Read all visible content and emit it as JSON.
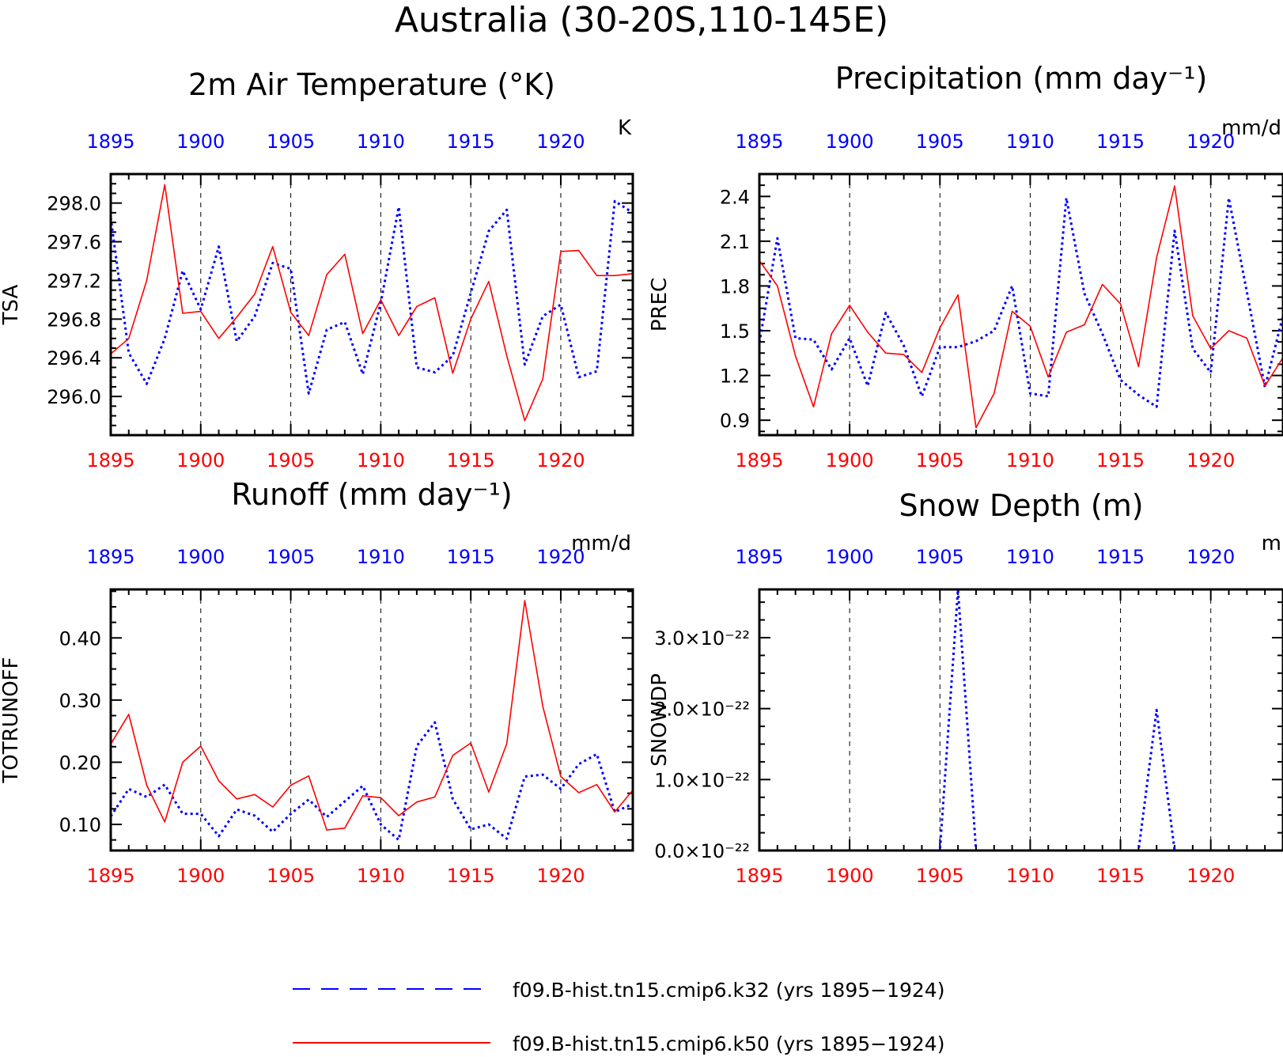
{
  "main_title": "Australia (30-20S,110-145E)",
  "colors": {
    "k32": "#0000ff",
    "k50": "#ff0000",
    "axis": "#000000"
  },
  "years": [
    1895,
    1896,
    1897,
    1898,
    1899,
    1900,
    1901,
    1902,
    1903,
    1904,
    1905,
    1906,
    1907,
    1908,
    1909,
    1910,
    1911,
    1912,
    1913,
    1914,
    1915,
    1916,
    1917,
    1918,
    1919,
    1920,
    1921,
    1922,
    1923,
    1924
  ],
  "chart_data": [
    {
      "id": "tsa",
      "type": "line",
      "title": "2m Air Temperature (°K)",
      "ylabel": "TSA",
      "units": "K",
      "ylim": [
        295.6,
        298.3
      ],
      "yticks": [
        "296.0",
        "296.4",
        "296.8",
        "297.2",
        "297.6",
        "298.0"
      ],
      "ytick_values": [
        296.0,
        296.4,
        296.8,
        297.2,
        297.6,
        298.0
      ],
      "xticks": [
        "1895",
        "1900",
        "1905",
        "1910",
        "1915",
        "1920"
      ],
      "xlim": [
        1895,
        1924
      ],
      "grid": "vertical dashed at 1900,1905,1910,1915,1920",
      "series": [
        {
          "name": "f09.B-hist.tn15.cmip6.k32 (yrs 1895-1924)",
          "style": "dotted",
          "color": "blue",
          "values": [
            297.85,
            296.45,
            296.13,
            296.6,
            297.3,
            296.9,
            297.55,
            296.57,
            296.83,
            297.38,
            297.32,
            296.03,
            296.69,
            296.77,
            296.23,
            296.97,
            297.96,
            296.3,
            296.25,
            296.42,
            297.07,
            297.71,
            297.93,
            296.33,
            296.83,
            296.95,
            296.2,
            296.26,
            298.02,
            297.9
          ]
        },
        {
          "name": "f09.B-hist.tn15.cmip6.k50 (yrs 1895-1924)",
          "style": "solid",
          "color": "red",
          "values": [
            296.44,
            296.6,
            297.2,
            298.19,
            296.86,
            296.88,
            296.6,
            296.82,
            297.06,
            297.55,
            296.87,
            296.63,
            297.26,
            297.47,
            296.65,
            297.0,
            296.63,
            296.93,
            297.02,
            296.24,
            296.8,
            297.19,
            296.42,
            295.75,
            296.18,
            297.5,
            297.51,
            297.25,
            297.25,
            297.27
          ]
        }
      ]
    },
    {
      "id": "prec",
      "type": "line",
      "title": "Precipitation (mm day⁻¹)",
      "ylabel": "PREC",
      "units": "mm/d",
      "ylim": [
        0.8,
        2.55
      ],
      "yticks": [
        "0.9",
        "1.2",
        "1.5",
        "1.8",
        "2.1",
        "2.4"
      ],
      "ytick_values": [
        0.9,
        1.2,
        1.5,
        1.8,
        2.1,
        2.4
      ],
      "xticks": [
        "1895",
        "1900",
        "1905",
        "1910",
        "1915",
        "1920"
      ],
      "xlim": [
        1895,
        1924
      ],
      "grid": "vertical dashed at 1900,1905,1910,1915,1920",
      "series": [
        {
          "name": "f09.B-hist.tn15.cmip6.k32 (yrs 1895-1924)",
          "style": "dotted",
          "color": "blue",
          "values": [
            1.42,
            2.12,
            1.45,
            1.44,
            1.24,
            1.45,
            1.13,
            1.62,
            1.4,
            1.06,
            1.39,
            1.39,
            1.43,
            1.5,
            1.8,
            1.08,
            1.06,
            2.39,
            1.75,
            1.48,
            1.17,
            1.07,
            0.99,
            2.17,
            1.38,
            1.22,
            2.39,
            1.76,
            1.12,
            1.6
          ]
        },
        {
          "name": "f09.B-hist.tn15.cmip6.k50 (yrs 1895-1924)",
          "style": "solid",
          "color": "red",
          "values": [
            1.97,
            1.8,
            1.33,
            0.99,
            1.48,
            1.67,
            1.49,
            1.35,
            1.34,
            1.22,
            1.52,
            1.74,
            0.85,
            1.08,
            1.63,
            1.53,
            1.19,
            1.49,
            1.54,
            1.81,
            1.68,
            1.26,
            1.99,
            2.47,
            1.6,
            1.38,
            1.5,
            1.45,
            1.13,
            1.32
          ]
        }
      ]
    },
    {
      "id": "runoff",
      "type": "line",
      "title": "Runoff (mm day⁻¹)",
      "ylabel": "TOTRUNOFF",
      "units": "mm/d",
      "ylim": [
        0.058,
        0.478
      ],
      "yticks": [
        "0.10",
        "0.20",
        "0.30",
        "0.40"
      ],
      "ytick_values": [
        0.1,
        0.2,
        0.3,
        0.4
      ],
      "xticks": [
        "1895",
        "1900",
        "1905",
        "1910",
        "1915",
        "1920"
      ],
      "xlim": [
        1895,
        1924
      ],
      "grid": "vertical dashed at 1900,1905,1910,1915,1920",
      "series": [
        {
          "name": "f09.B-hist.tn15.cmip6.k32 (yrs 1895-1924)",
          "style": "dotted",
          "color": "blue",
          "values": [
            0.113,
            0.157,
            0.144,
            0.164,
            0.117,
            0.117,
            0.081,
            0.124,
            0.114,
            0.088,
            0.117,
            0.14,
            0.112,
            0.137,
            0.162,
            0.1,
            0.075,
            0.226,
            0.264,
            0.141,
            0.092,
            0.1,
            0.077,
            0.177,
            0.18,
            0.157,
            0.197,
            0.213,
            0.12,
            0.133
          ]
        },
        {
          "name": "f09.B-hist.tn15.cmip6.k50 (yrs 1895-1924)",
          "style": "solid",
          "color": "red",
          "values": [
            0.229,
            0.277,
            0.163,
            0.104,
            0.2,
            0.226,
            0.17,
            0.141,
            0.148,
            0.128,
            0.163,
            0.178,
            0.091,
            0.094,
            0.146,
            0.143,
            0.114,
            0.136,
            0.144,
            0.211,
            0.231,
            0.152,
            0.23,
            0.46,
            0.29,
            0.177,
            0.151,
            0.164,
            0.12,
            0.155
          ]
        }
      ]
    },
    {
      "id": "snowdp",
      "type": "line",
      "title": "Snow Depth (m)",
      "ylabel": "SNOWDP",
      "units": "m",
      "ylim": [
        0.0,
        3.68
      ],
      "yticks": [
        "0.0×10⁻²²",
        "1.0×10⁻²²",
        "2.0×10⁻²²",
        "3.0×10⁻²²"
      ],
      "ytick_values": [
        0.0,
        1.0,
        2.0,
        3.0
      ],
      "value_scale": "1e-22",
      "xticks": [
        "1895",
        "1900",
        "1905",
        "1910",
        "1915",
        "1920"
      ],
      "xlim": [
        1895,
        1924
      ],
      "grid": "vertical dashed at 1900,1905,1910,1915,1920",
      "series": [
        {
          "name": "f09.B-hist.tn15.cmip6.k32 (yrs 1895-1924)",
          "style": "dotted",
          "color": "blue",
          "values": [
            0,
            0,
            0,
            0,
            0,
            0,
            0,
            0,
            0,
            0,
            0,
            3.68,
            0,
            0,
            0,
            0,
            0,
            0,
            0,
            0,
            0,
            0,
            1.98,
            0,
            0,
            0,
            0,
            0,
            0,
            0
          ]
        },
        {
          "name": "f09.B-hist.tn15.cmip6.k50 (yrs 1895-1924)",
          "style": "solid",
          "color": "red",
          "values": [
            0,
            0,
            0,
            0,
            0,
            0,
            0,
            0,
            0,
            0,
            0,
            0,
            0,
            0,
            0,
            0,
            0,
            0,
            0,
            0,
            0,
            0,
            0,
            0,
            0,
            0,
            0,
            0,
            0,
            0
          ]
        }
      ]
    }
  ],
  "legend": [
    {
      "label": "f09.B-hist.tn15.cmip6.k32 (yrs 1895−1924)",
      "style": "dashed",
      "color": "#0000ff"
    },
    {
      "label": "f09.B-hist.tn15.cmip6.k50 (yrs 1895−1924)",
      "style": "solid",
      "color": "#ff0000"
    }
  ]
}
